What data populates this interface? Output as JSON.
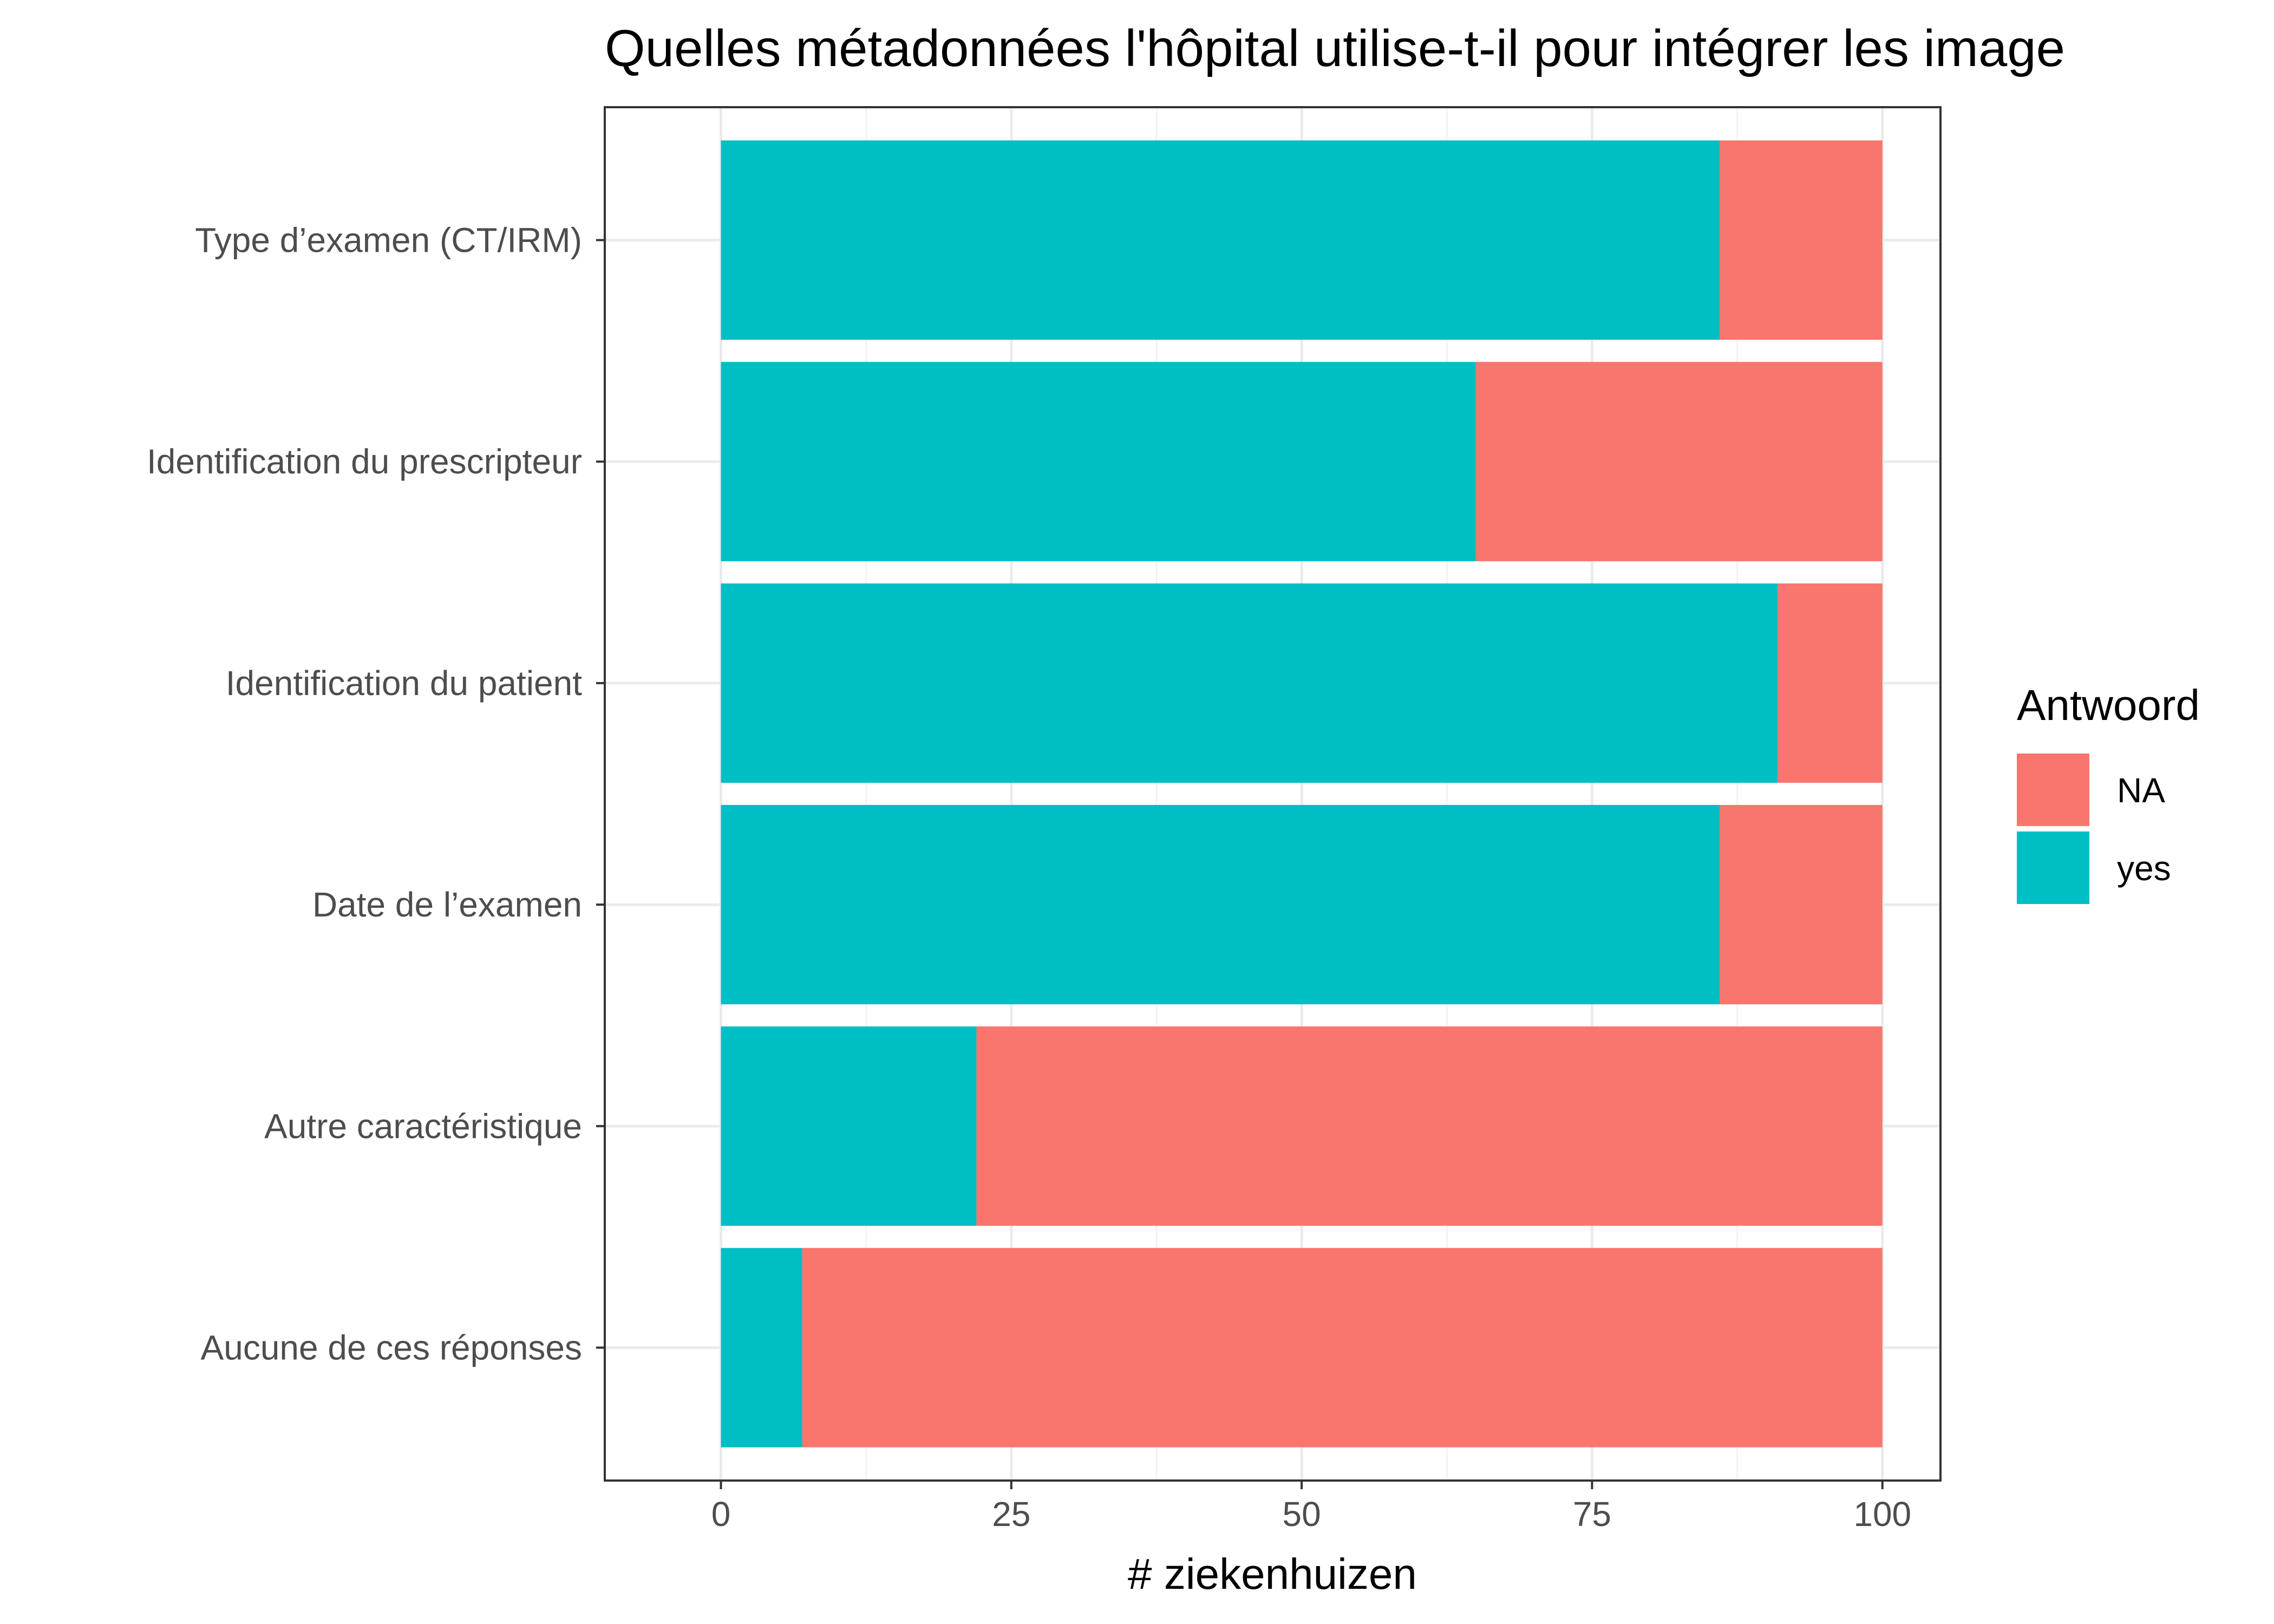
{
  "chart_data": {
    "type": "bar",
    "orientation": "horizontal",
    "stacked": true,
    "title": "Quelles métadonnées l'hôpital utilise-t-il pour intégrer les image",
    "xlabel": "# ziekenhuizen",
    "ylabel": "",
    "xlim": [
      -10,
      105
    ],
    "x_ticks": [
      0,
      25,
      50,
      75,
      100
    ],
    "x_tick_labels": [
      "0",
      "25",
      "50",
      "75",
      "100"
    ],
    "categories": [
      "Type d’examen (CT/IRM)",
      "Identification du prescripteur",
      "Identification du patient",
      "Date de l’examen",
      "Autre caractéristique",
      "Aucune de ces réponses"
    ],
    "series": [
      {
        "name": "yes",
        "color": "#00BFC4",
        "values": [
          86,
          65,
          91,
          86,
          22,
          7
        ]
      },
      {
        "name": "NA",
        "color": "#F8766D",
        "values": [
          14,
          35,
          9,
          14,
          78,
          93
        ]
      }
    ],
    "legend": {
      "title": "Antwoord",
      "position": "right",
      "entries": [
        {
          "label": "NA",
          "color": "#F8766D"
        },
        {
          "label": "yes",
          "color": "#00BFC4"
        }
      ]
    },
    "grid": true,
    "panel_border": true
  }
}
